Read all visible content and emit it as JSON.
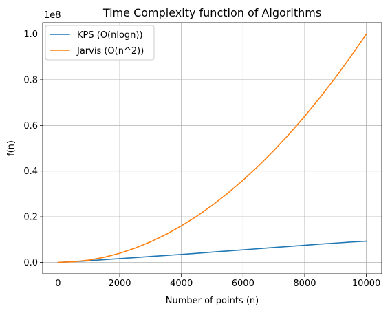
{
  "chart_data": {
    "type": "line",
    "title": "Time Complexity function of Algorithms",
    "xlabel": "Number of points (n)",
    "ylabel": "f(n)",
    "y_offset_label": "1e8",
    "xlim": [
      -500,
      10500
    ],
    "ylim": [
      -5000000,
      105000000
    ],
    "x_ticks": [
      0,
      2000,
      4000,
      6000,
      8000,
      10000
    ],
    "x_tick_labels": [
      "0",
      "2000",
      "4000",
      "6000",
      "8000",
      "10000"
    ],
    "y_ticks": [
      0,
      20000000,
      40000000,
      60000000,
      80000000,
      100000000
    ],
    "y_tick_labels": [
      "0.0",
      "0.2",
      "0.4",
      "0.6",
      "0.8",
      "1.0"
    ],
    "grid": true,
    "legend_position": "top-left",
    "x": [
      1,
      500,
      1000,
      1500,
      2000,
      2500,
      3000,
      3500,
      4000,
      4500,
      5000,
      5500,
      6000,
      6500,
      7000,
      7500,
      8000,
      8500,
      9000,
      9500,
      10000
    ],
    "series": [
      {
        "name": "KPS (O(nlogn))",
        "color": "#1f77b4",
        "values": [
          0,
          300000,
          700000,
          1200000,
          1650000,
          2100000,
          2600000,
          3050000,
          3500000,
          4000000,
          4500000,
          5000000,
          5500000,
          6000000,
          6500000,
          7000000,
          7500000,
          8000000,
          8450000,
          8900000,
          9300000
        ]
      },
      {
        "name": "Jarvis (O(n^2))",
        "color": "#ff7f0e",
        "values": [
          0,
          250000,
          1000000,
          2250000,
          4000000,
          6250000,
          9000000,
          12250000,
          16000000,
          20250000,
          25000000,
          30250000,
          36000000,
          42250000,
          49000000,
          56250000,
          64000000,
          72250000,
          81000000,
          90250000,
          100000000
        ]
      }
    ]
  }
}
